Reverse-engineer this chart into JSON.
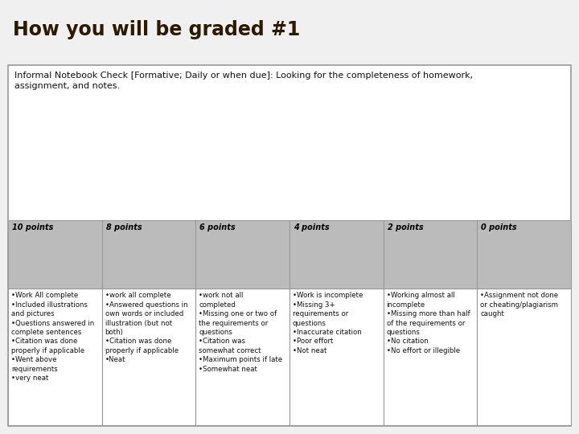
{
  "title": "How you will be graded #1",
  "title_bg": "#E8820C",
  "title_text_color": "#2B1A00",
  "subtitle_line1": "Informal Notebook Check [Formative; Daily or when due]: Looking for the completeness of homework,",
  "subtitle_line2": "assignment, and notes.",
  "header_bg": "#BBBBBB",
  "header_labels": [
    "10 points",
    "8 points",
    "6 points",
    "4 points",
    "2 points",
    "0 points"
  ],
  "col_contents": [
    "•Work All complete\n•Included illustrations\nand pictures\n•Questions answered in\ncomplete sentences\n•Citation was done\nproperly if applicable\n•Went above\nrequirements\n•very neat",
    "•work all complete\n•Answered questions in\nown words or included\nillustration (but not\nboth)\n•Citation was done\nproperly if applicable\n•Neat",
    "•work not all\ncompleted\n•Missing one or two of\nthe requirements or\nquestions\n•Citation was\nsomewhat correct\n•Maximum points if late\n•Somewhat neat",
    "•Work is incomplete\n•Missing 3+\nrequirements or\nquestions\n•Inaccurate citation\n•Poor effort\n•Not neat",
    "•Working almost all\nincomplete\n•Missing more than half\nof the requirements or\nquestions\n•No citation\n•No effort or illegible",
    "•Assignment not done\nor cheating/plagiarism\ncaught"
  ],
  "accent_color": "#6AAB2E",
  "dark_bar_color": "#3A3A3A",
  "bg_color": "#F0F0F0",
  "cell_bg": "#FFFFFF",
  "border_color": "#999999",
  "header_text_color": "#000000",
  "body_text_color": "#111111"
}
